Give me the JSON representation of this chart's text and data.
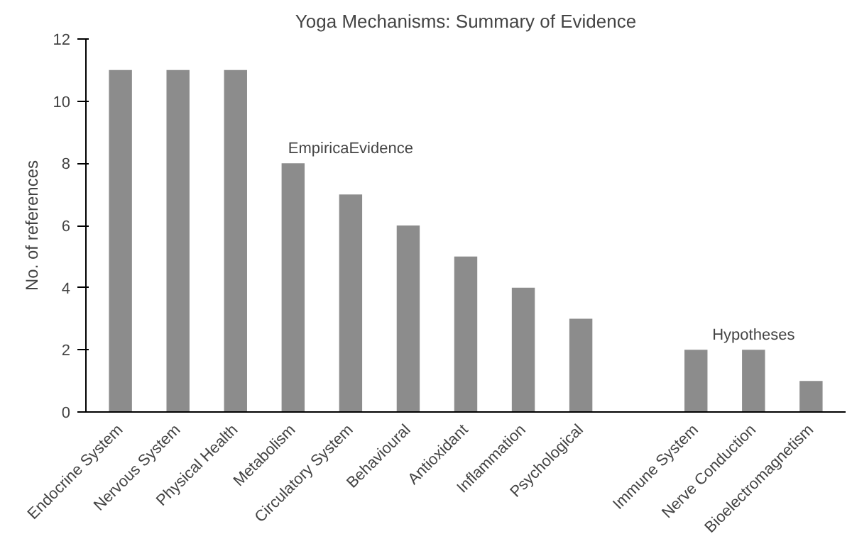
{
  "chart_data": {
    "type": "bar",
    "title": "Yoga Mechanisms: Summary of Evidence",
    "ylabel": "No. of references",
    "categories": [
      "Endocrine System",
      "Nervous System",
      "Physical Health",
      "Metabolism",
      "Circulatory System",
      "Behavioural",
      "Antioxidant",
      "Inflammation",
      "Psychological",
      null,
      "Immune System",
      "Nerve Conduction",
      "Bioelectromagnetism"
    ],
    "values": [
      11,
      11,
      11,
      8,
      7,
      6,
      5,
      4,
      3,
      null,
      2,
      2,
      1
    ],
    "color": "#8c8c8c",
    "ylim": [
      0,
      12
    ],
    "yticks": [
      0,
      2,
      4,
      6,
      8,
      10,
      12
    ],
    "grid": false,
    "annotations": [
      "EmpiricaEvidence",
      "Hypotheses"
    ]
  }
}
